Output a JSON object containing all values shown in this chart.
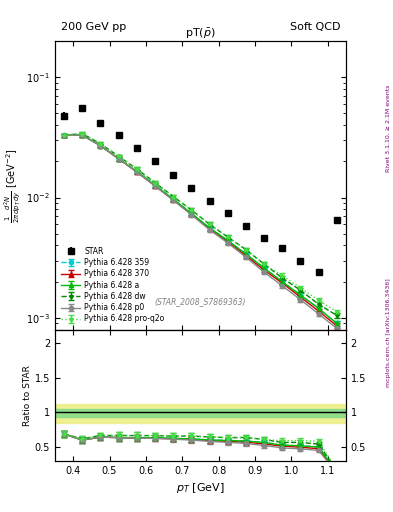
{
  "title_left": "200 GeV pp",
  "title_right": "Soft QCD",
  "plot_title": "pT(ρ̅)",
  "xlabel": "p_{T} [GeV]",
  "ylabel_main": "\\frac{1}{2\\pi} \\frac{d^2N}{dp_T\\, dy} \\left[GeV^{-2}\\right]",
  "ylabel_ratio": "Ratio to STAR",
  "watermark": "(STAR_2008_S7869363)",
  "rivet_text": "Rivet 3.1.10, ≥ 2.1M events",
  "mcplots_text": "mcplots.cern.ch [arXiv:1306.3436]",
  "star_pt": [
    0.375,
    0.425,
    0.475,
    0.525,
    0.575,
    0.625,
    0.675,
    0.725,
    0.775,
    0.825,
    0.875,
    0.925,
    0.975,
    1.025,
    1.075,
    1.125
  ],
  "star_y": [
    0.048,
    0.055,
    0.042,
    0.033,
    0.026,
    0.02,
    0.0155,
    0.012,
    0.0093,
    0.0074,
    0.0058,
    0.0046,
    0.0038,
    0.003,
    0.0024,
    0.0065
  ],
  "star_yerr": [
    0.003,
    0.003,
    0.002,
    0.002,
    0.0015,
    0.001,
    0.0008,
    0.0006,
    0.0005,
    0.0004,
    0.0003,
    0.0002,
    0.0002,
    0.00015,
    0.00012,
    0.0004
  ],
  "pt_mc": [
    0.375,
    0.425,
    0.475,
    0.525,
    0.575,
    0.625,
    0.675,
    0.725,
    0.775,
    0.825,
    0.875,
    0.925,
    0.975,
    1.025,
    1.075,
    1.125
  ],
  "py359_y": [
    0.033,
    0.033,
    0.027,
    0.021,
    0.0165,
    0.0127,
    0.0097,
    0.0074,
    0.0056,
    0.0044,
    0.0034,
    0.0026,
    0.002,
    0.00155,
    0.0012,
    0.0009
  ],
  "py370_y": [
    0.033,
    0.033,
    0.027,
    0.021,
    0.0163,
    0.0125,
    0.0096,
    0.0073,
    0.0055,
    0.0043,
    0.0033,
    0.0025,
    0.00195,
    0.00149,
    0.00114,
    0.00086
  ],
  "pya_y": [
    0.033,
    0.033,
    0.027,
    0.021,
    0.0165,
    0.0127,
    0.0097,
    0.0074,
    0.0056,
    0.0044,
    0.0034,
    0.0026,
    0.002,
    0.00155,
    0.0012,
    0.0009
  ],
  "pydw_y": [
    0.033,
    0.034,
    0.028,
    0.022,
    0.0173,
    0.0133,
    0.0102,
    0.0079,
    0.006,
    0.0047,
    0.0037,
    0.0028,
    0.00215,
    0.0017,
    0.0013,
    0.00105
  ],
  "pyp0_y": [
    0.033,
    0.033,
    0.027,
    0.021,
    0.0163,
    0.0125,
    0.0095,
    0.0072,
    0.0054,
    0.0042,
    0.0032,
    0.0024,
    0.00185,
    0.00142,
    0.00108,
    0.00082
  ],
  "pyproq2o_y": [
    0.033,
    0.034,
    0.028,
    0.022,
    0.0173,
    0.0133,
    0.0102,
    0.0079,
    0.006,
    0.0047,
    0.0037,
    0.0028,
    0.00225,
    0.00178,
    0.0014,
    0.00113
  ],
  "py359_yerr": [
    0.001,
    0.001,
    0.0008,
    0.0007,
    0.0005,
    0.0004,
    0.0003,
    0.00025,
    0.0002,
    0.00016,
    0.00013,
    0.0001,
    8e-05,
    6e-05,
    5e-05,
    4e-05
  ],
  "py370_yerr": [
    0.001,
    0.001,
    0.0008,
    0.0007,
    0.0005,
    0.0004,
    0.0003,
    0.00025,
    0.0002,
    0.00016,
    0.00013,
    0.0001,
    8e-05,
    6e-05,
    5e-05,
    4e-05
  ],
  "pya_yerr": [
    0.001,
    0.001,
    0.0008,
    0.0007,
    0.0005,
    0.0004,
    0.0003,
    0.00025,
    0.0002,
    0.00016,
    0.00013,
    0.0001,
    8e-05,
    6e-05,
    5e-05,
    4e-05
  ],
  "pydw_yerr": [
    0.001,
    0.001,
    0.0009,
    0.0007,
    0.0006,
    0.0004,
    0.0003,
    0.00028,
    0.00022,
    0.00017,
    0.00014,
    0.00011,
    8.5e-05,
    6.6e-05,
    5.2e-05,
    4.2e-05
  ],
  "pyp0_yerr": [
    0.001,
    0.001,
    0.0008,
    0.0006,
    0.0005,
    0.0004,
    0.0003,
    0.00024,
    0.00019,
    0.00015,
    0.00012,
    9.5e-05,
    7.5e-05,
    5.8e-05,
    4.5e-05,
    3.6e-05
  ],
  "pyproq2o_yerr": [
    0.001,
    0.001,
    0.0009,
    0.0007,
    0.0006,
    0.0004,
    0.0003,
    0.00028,
    0.00022,
    0.00017,
    0.00014,
    0.00011,
    9e-05,
    7e-05,
    5.5e-05,
    4.5e-05
  ],
  "color_359": "#00cccc",
  "color_370": "#cc0000",
  "color_a": "#00bb00",
  "color_dw": "#008800",
  "color_p0": "#888888",
  "color_proq2o": "#44dd44",
  "ylim_main": [
    0.0008,
    0.2
  ],
  "xlim": [
    0.35,
    1.15
  ],
  "ylim_ratio": [
    0.3,
    2.2
  ],
  "band_inner_color": "#88dd88",
  "band_outer_color": "#eeee88",
  "band_inner_low": 0.93,
  "band_inner_high": 1.05,
  "band_outer_low": 0.85,
  "band_outer_high": 1.12
}
